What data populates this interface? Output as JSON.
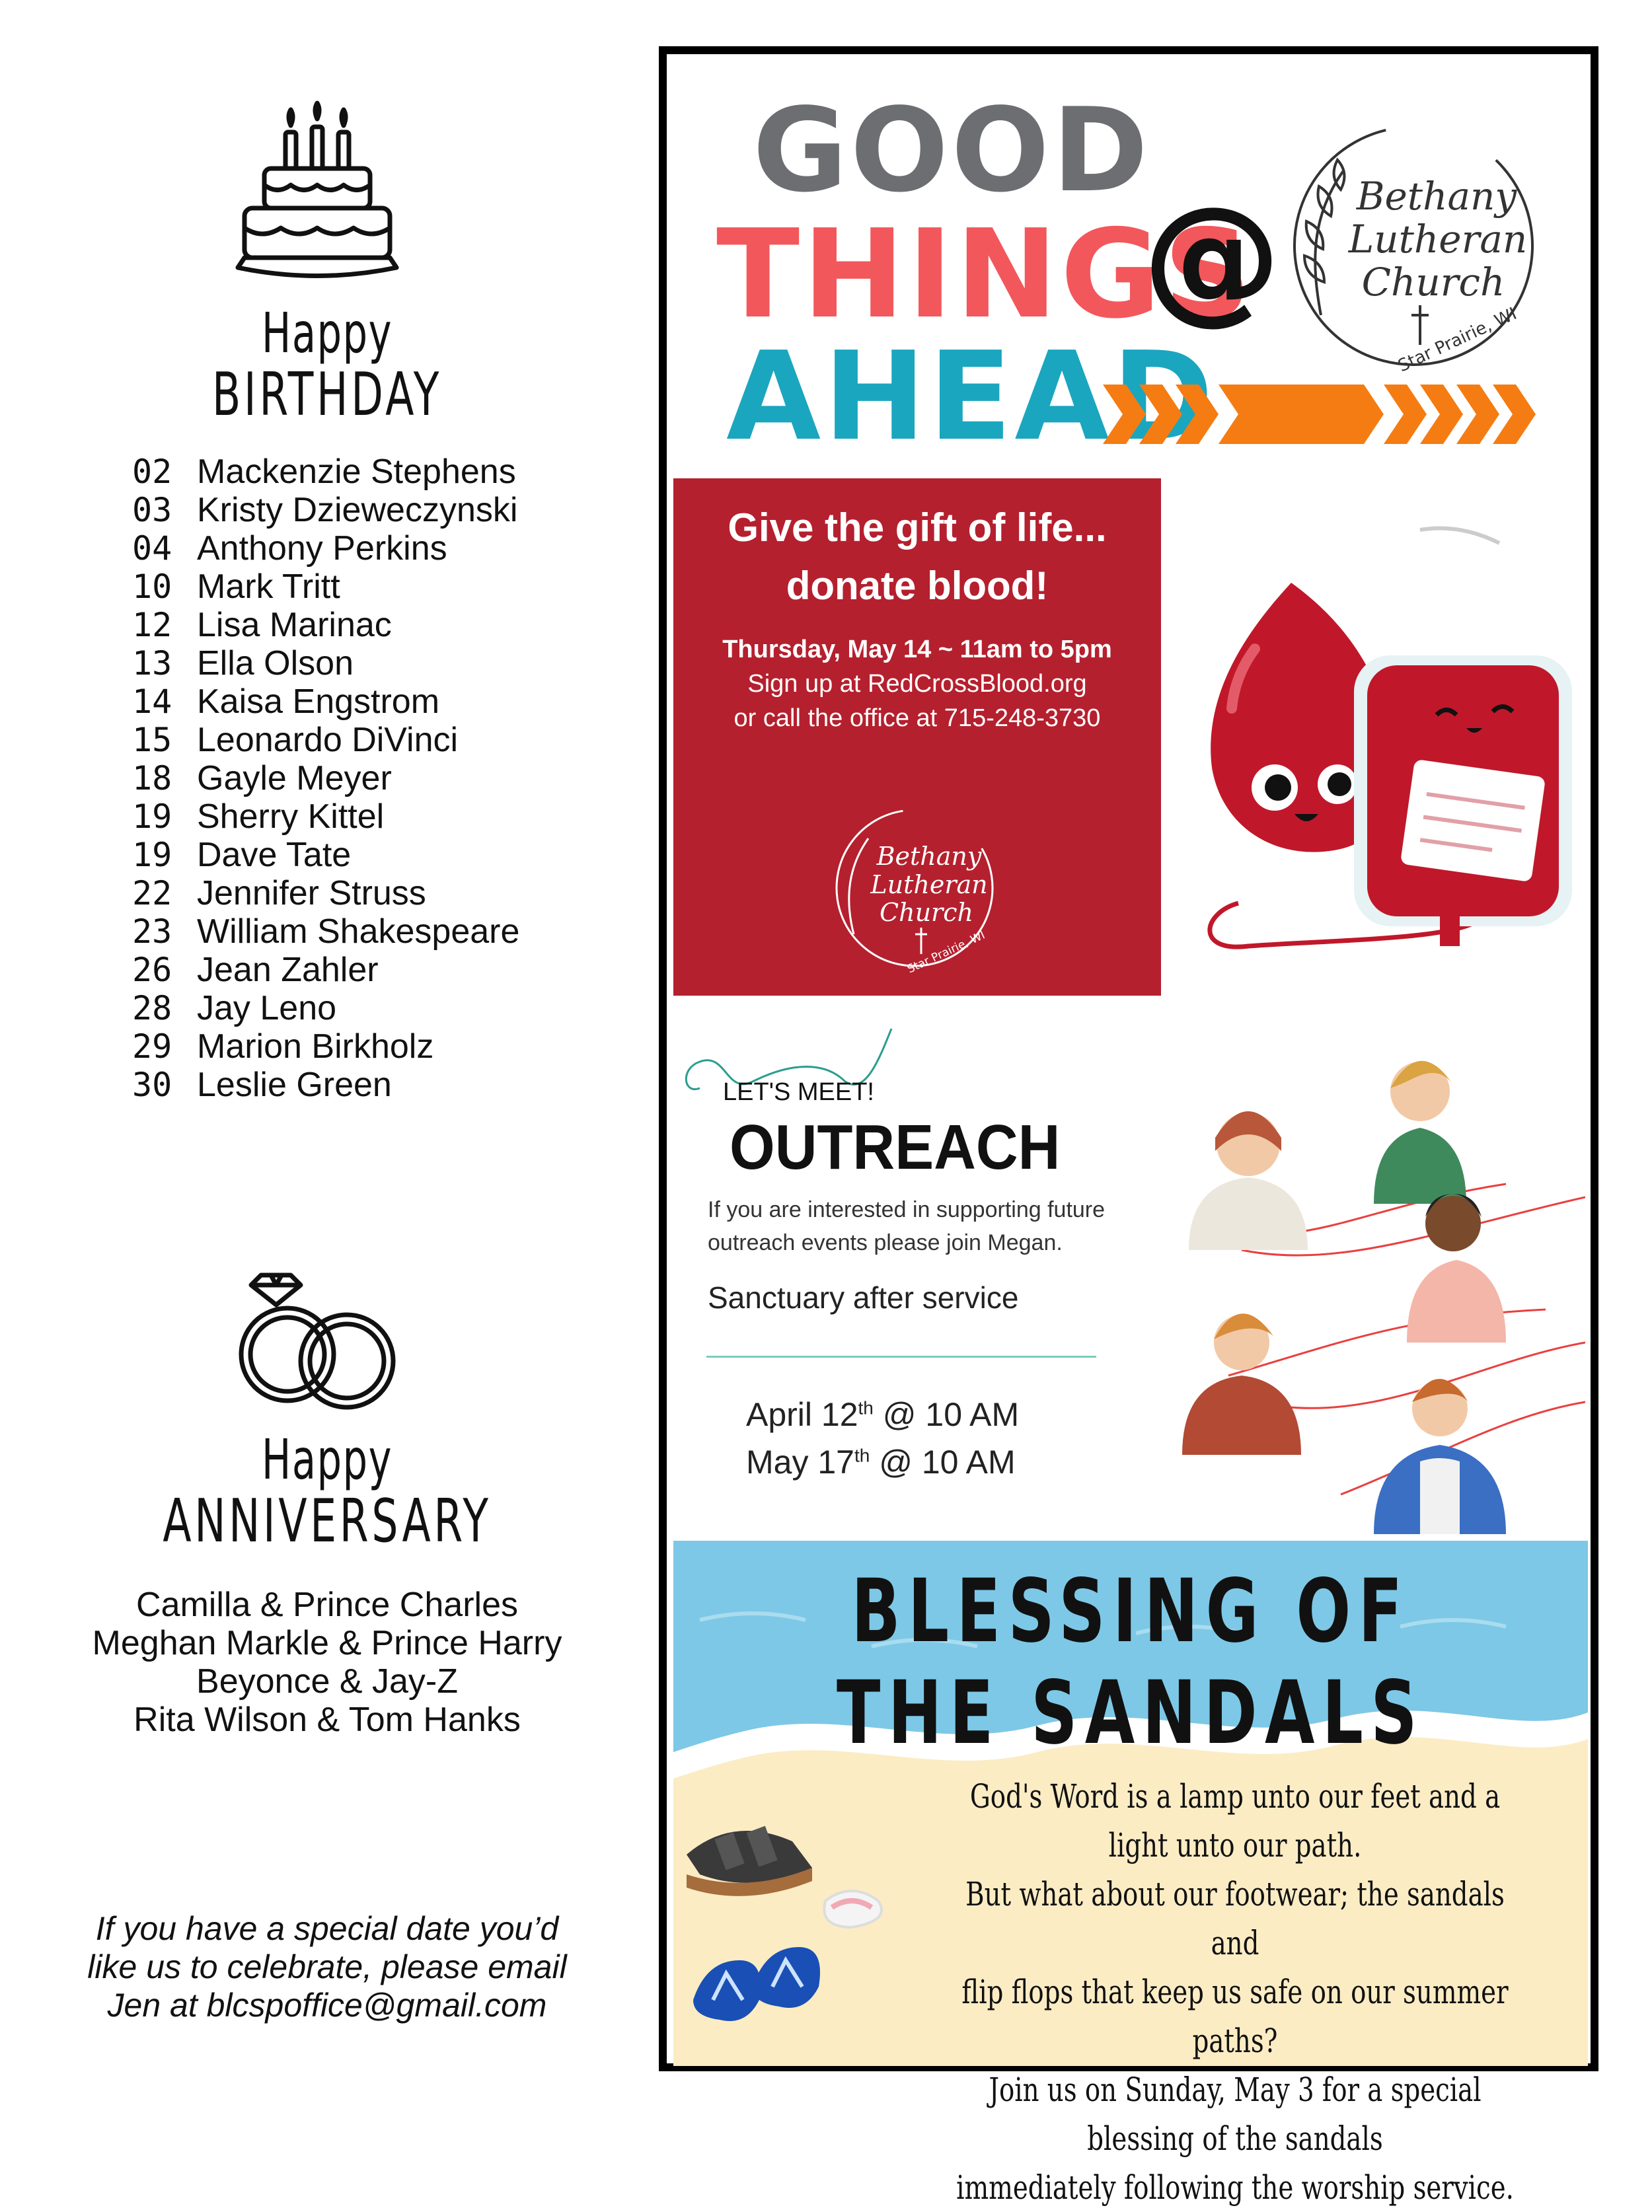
{
  "birthday": {
    "heading_top": "Happy",
    "heading_main": "BIRTHDAY",
    "entries": [
      {
        "day": "02",
        "name": "Mackenzie Stephens"
      },
      {
        "day": "03",
        "name": "Kristy Dzieweczynski"
      },
      {
        "day": "04",
        "name": "Anthony Perkins"
      },
      {
        "day": "10",
        "name": "Mark Tritt"
      },
      {
        "day": "12",
        "name": "Lisa Marinac"
      },
      {
        "day": "13",
        "name": "Ella Olson"
      },
      {
        "day": "14",
        "name": "Kaisa Engstrom"
      },
      {
        "day": "15",
        "name": "Leonardo DiVinci"
      },
      {
        "day": "18",
        "name": "Gayle Meyer"
      },
      {
        "day": "19",
        "name": "Sherry Kittel"
      },
      {
        "day": "19",
        "name": "Dave Tate"
      },
      {
        "day": "22",
        "name": "Jennifer Struss"
      },
      {
        "day": "23",
        "name": "William Shakespeare"
      },
      {
        "day": "26",
        "name": "Jean Zahler"
      },
      {
        "day": "28",
        "name": "Jay Leno"
      },
      {
        "day": "29",
        "name": "Marion Birkholz"
      },
      {
        "day": "30",
        "name": "Leslie Green"
      }
    ]
  },
  "anniversary": {
    "heading_top": "Happy",
    "heading_main": "ANNIVERSARY",
    "couples": [
      "Camilla & Prince Charles",
      "Meghan Markle & Prince Harry",
      "Beyonce & Jay-Z",
      "Rita Wilson & Tom Hanks"
    ]
  },
  "note": {
    "line1": "If you have a special date you’d",
    "line2": "like us to celebrate, please email",
    "line3": "Jen at blcspoffice@gmail.com"
  },
  "banner": {
    "word1": "GOOD",
    "word2": "THINGS",
    "word3": "AHEAD",
    "at": "@",
    "colors": {
      "good": "#6d6e71",
      "things": "#f2575c",
      "ahead": "#1aa6bf",
      "arrows": "#f57c12"
    }
  },
  "logo": {
    "line1": "Bethany",
    "line2": "Lutheran",
    "line3": "Church",
    "place": "Star Prairie, WI"
  },
  "blood_drive": {
    "heading1": "Give the gift of life...",
    "heading2": "donate blood!",
    "date_line": "Thursday, May 14 ~ 11am to 5pm",
    "signup_line": "Sign up at RedCrossBlood.org",
    "call_line": "or call the office at 715-248-3730",
    "bg_color": "#b5202e"
  },
  "outreach": {
    "kicker": "LET'S MEET!",
    "title": "OUTREACH",
    "desc1": "If you are interested in supporting future",
    "desc2": "outreach events please join Megan.",
    "location": "Sanctuary after service",
    "date1": {
      "month_day": "April 12",
      "suffix": "th",
      "time": " @ 10 AM"
    },
    "date2": {
      "month_day": "May 17",
      "suffix": "th",
      "time": " @ 10 AM"
    }
  },
  "sandals": {
    "title": "BLESSING OF THE SANDALS",
    "verse": [
      "God's Word is a lamp unto our feet and a light unto our path.",
      "But what about our footwear; the sandals and",
      "flip flops that keep us safe on our summer paths?",
      "Join us on Sunday, May 3 for a special blessing of the sandals",
      "immediately following the worship service."
    ]
  }
}
